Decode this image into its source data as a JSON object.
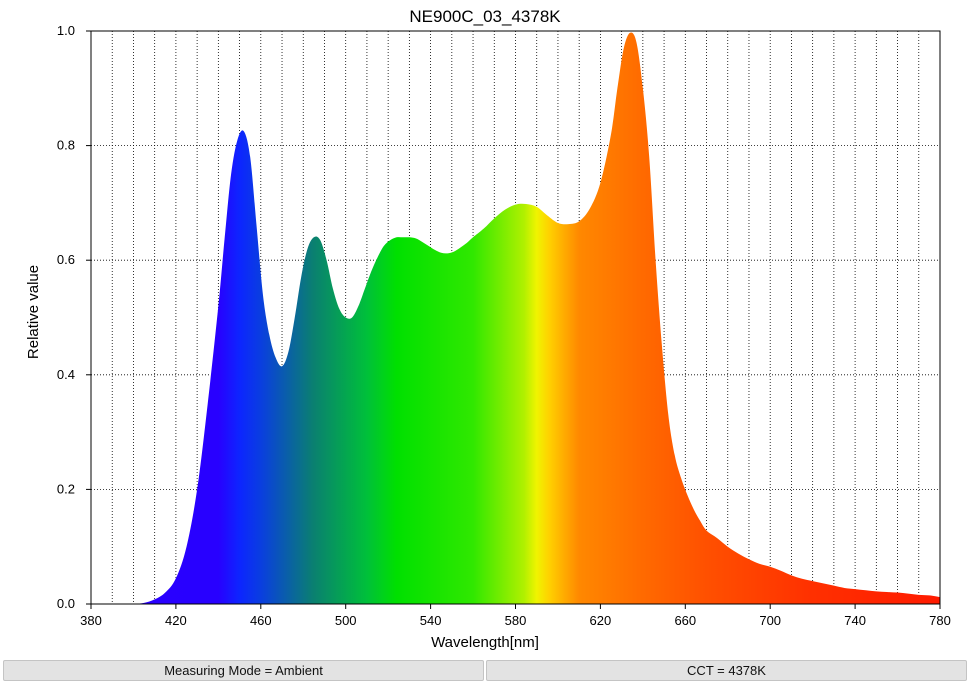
{
  "chart_data": {
    "type": "area",
    "title": "NE900C_03_4378K",
    "xlabel": "Wavelength[nm]",
    "ylabel": "Relative value",
    "xlim": [
      380,
      780
    ],
    "ylim": [
      0.0,
      1.0
    ],
    "x_ticks": [
      "380",
      "420",
      "460",
      "500",
      "540",
      "580",
      "620",
      "660",
      "700",
      "740",
      "780"
    ],
    "y_ticks": [
      "0.0",
      "0.2",
      "0.4",
      "0.6",
      "0.8",
      "1.0"
    ],
    "grid": "dotted, every 10 nm and 0.2",
    "fill": "spectral color gradient",
    "x": [
      400,
      405,
      410,
      415,
      420,
      425,
      430,
      435,
      440,
      443,
      446,
      449,
      452,
      455,
      458,
      461,
      464,
      467,
      470,
      473,
      476,
      479,
      482,
      485,
      488,
      491,
      494,
      497,
      500,
      503,
      506,
      509,
      512,
      515,
      518,
      521,
      524,
      527,
      530,
      533,
      536,
      539,
      542,
      545,
      548,
      551,
      554,
      557,
      560,
      565,
      570,
      575,
      580,
      585,
      590,
      595,
      600,
      605,
      610,
      615,
      620,
      625,
      628,
      631,
      634,
      637,
      640,
      643,
      646,
      649,
      652,
      655,
      658,
      661,
      664,
      667,
      670,
      675,
      680,
      685,
      690,
      695,
      700,
      705,
      710,
      715,
      720,
      725,
      730,
      735,
      740,
      745,
      750,
      755,
      760,
      765,
      770,
      775,
      780
    ],
    "y": [
      0.0,
      0.002,
      0.008,
      0.02,
      0.045,
      0.1,
      0.2,
      0.35,
      0.52,
      0.64,
      0.75,
      0.81,
      0.825,
      0.78,
      0.66,
      0.54,
      0.47,
      0.43,
      0.415,
      0.44,
      0.5,
      0.57,
      0.62,
      0.64,
      0.635,
      0.6,
      0.55,
      0.515,
      0.5,
      0.5,
      0.52,
      0.55,
      0.58,
      0.605,
      0.625,
      0.635,
      0.64,
      0.64,
      0.64,
      0.638,
      0.632,
      0.625,
      0.618,
      0.613,
      0.612,
      0.615,
      0.622,
      0.63,
      0.64,
      0.655,
      0.673,
      0.688,
      0.697,
      0.698,
      0.693,
      0.678,
      0.665,
      0.663,
      0.668,
      0.69,
      0.735,
      0.82,
      0.9,
      0.97,
      0.997,
      0.98,
      0.9,
      0.78,
      0.6,
      0.45,
      0.33,
      0.26,
      0.22,
      0.19,
      0.165,
      0.145,
      0.128,
      0.115,
      0.1,
      0.088,
      0.078,
      0.07,
      0.065,
      0.058,
      0.05,
      0.044,
      0.04,
      0.036,
      0.032,
      0.028,
      0.026,
      0.024,
      0.022,
      0.021,
      0.02,
      0.018,
      0.016,
      0.015,
      0.012
    ]
  },
  "status_bar": {
    "mode": "Measuring Mode = Ambient",
    "cct": "CCT = 4378K"
  }
}
